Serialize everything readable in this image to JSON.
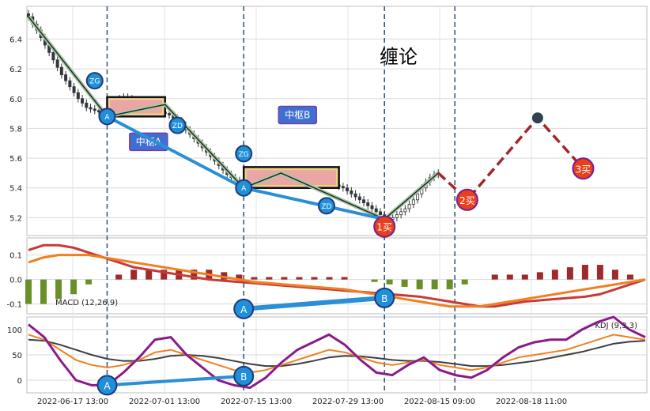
{
  "chart_data": {
    "type": "line",
    "title": "缠论",
    "x_tick_labels": [
      "2022-06-17 13:00",
      "2022-07-01 13:00",
      "2022-07-15 13:00",
      "2022-07-29 13:00",
      "2022-08-15 09:00",
      "2022-08-18 11:00"
    ],
    "n_bars": 150,
    "price_panel": {
      "ylim": [
        5.08,
        6.62
      ],
      "ticks": [
        5.2,
        5.4,
        5.6,
        5.8,
        6.0,
        6.2,
        6.4
      ],
      "candles": [
        [
          6.56,
          6.58,
          6.44,
          6.48
        ],
        [
          6.48,
          6.52,
          6.38,
          6.42
        ],
        [
          6.42,
          6.46,
          6.3,
          6.35
        ],
        [
          6.35,
          6.38,
          6.22,
          6.27
        ],
        [
          6.27,
          6.3,
          6.16,
          6.2
        ],
        [
          6.2,
          6.24,
          6.12,
          6.16
        ],
        [
          6.16,
          6.19,
          6.06,
          6.1
        ],
        [
          6.1,
          6.14,
          6.02,
          6.06
        ],
        [
          6.06,
          6.09,
          5.97,
          6.01
        ],
        [
          6.01,
          6.04,
          5.93,
          5.97
        ],
        [
          5.97,
          6.0,
          5.92,
          5.96
        ],
        [
          5.96,
          5.99,
          5.93,
          5.97
        ],
        [
          5.97,
          6.02,
          5.95,
          6.0
        ],
        [
          6.0,
          6.04,
          5.98,
          6.02
        ],
        [
          6.02,
          6.05,
          5.99,
          6.01
        ],
        [
          6.01,
          6.03,
          5.96,
          5.98
        ],
        [
          5.98,
          6.0,
          5.93,
          5.95
        ],
        [
          5.95,
          5.97,
          5.9,
          5.92
        ],
        [
          5.92,
          5.95,
          5.88,
          5.9
        ],
        [
          5.9,
          5.93,
          5.87,
          5.91
        ]
      ],
      "close": [
        6.55,
        6.5,
        6.46,
        6.41,
        6.36,
        6.31,
        6.26,
        6.21,
        6.16,
        6.12,
        6.08,
        6.04,
        6.0,
        5.97,
        5.94,
        5.93,
        5.92,
        5.91,
        5.9,
        5.92,
        5.95,
        5.98,
        6.0,
        6.01,
        6.0,
        5.99,
        5.97,
        5.96,
        5.95,
        5.94,
        5.93,
        5.92,
        5.91,
        5.9,
        5.89,
        5.87,
        5.85,
        5.82,
        5.79,
        5.76,
        5.73,
        5.7,
        5.67,
        5.64,
        5.61,
        5.58,
        5.55,
        5.52,
        5.49,
        5.47,
        5.45,
        5.44,
        5.43,
        5.42,
        5.43,
        5.44,
        5.45,
        5.46,
        5.47,
        5.48,
        5.49,
        5.5,
        5.49,
        5.48,
        5.47,
        5.46,
        5.45,
        5.44,
        5.43,
        5.43,
        5.44,
        5.45,
        5.44,
        5.43,
        5.42,
        5.41,
        5.4,
        5.38,
        5.36,
        5.34,
        5.32,
        5.3,
        5.28,
        5.26,
        5.24,
        5.22,
        5.2,
        5.19,
        5.2,
        5.22,
        5.24,
        5.26,
        5.29,
        5.32,
        5.36,
        5.4,
        5.44,
        5.47,
        5.49,
        5.5
      ],
      "bi_lines": [
        {
          "points": [
            [
              0,
              6.55
            ],
            [
              19,
              5.88
            ],
            [
              33,
              5.96
            ],
            [
              52,
              5.4
            ],
            [
              61,
              5.5
            ],
            [
              86,
              5.19
            ],
            [
              99,
              5.5
            ]
          ],
          "color": "#1f2b1f"
        },
        {
          "points": [
            [
              19,
              5.88
            ],
            [
              52,
              5.4
            ],
            [
              86,
              5.19
            ]
          ],
          "color": "#2a8fd6"
        }
      ],
      "hubs": [
        {
          "name": "中枢A",
          "x0": 19,
          "x1": 33,
          "y0": 5.88,
          "y1": 6.01,
          "label_x": 29,
          "label_y": 5.71
        },
        {
          "name": "中枢B",
          "x0": 52,
          "x1": 75,
          "y0": 5.4,
          "y1": 5.54,
          "label_x": 65,
          "label_y": 5.89
        }
      ],
      "markers": [
        {
          "label": "ZG",
          "x": 16,
          "y": 6.12
        },
        {
          "label": "A",
          "x": 19,
          "y": 5.88
        },
        {
          "label": "ZD",
          "x": 36,
          "y": 5.82
        },
        {
          "label": "ZG",
          "x": 52,
          "y": 5.63
        },
        {
          "label": "A",
          "x": 52,
          "y": 5.4
        },
        {
          "label": "ZD",
          "x": 72,
          "y": 5.28
        },
        {
          "label": "1买",
          "x": 86,
          "y": 5.14
        }
      ],
      "forecast": [
        [
          99,
          5.5
        ],
        [
          106,
          5.32
        ],
        [
          123,
          5.87
        ],
        [
          134,
          5.53
        ]
      ],
      "forecast_markers": [
        {
          "label": "2买",
          "x": 106,
          "y": 5.32
        },
        {
          "label": "3买",
          "x": 134,
          "y": 5.53
        }
      ],
      "peak_dot": {
        "x": 123,
        "y": 5.87
      }
    },
    "macd_panel": {
      "name": "MACD (12,26,9)",
      "ylim": [
        -0.14,
        0.17
      ],
      "ticks": [
        0.1,
        0.0,
        -0.1
      ],
      "diff": [
        0.07,
        0.09,
        0.1,
        0.1,
        0.1,
        0.09,
        0.08,
        0.07,
        0.06,
        0.05,
        0.04,
        0.03,
        0.02,
        0.01,
        0.0,
        -0.01,
        -0.015,
        -0.02,
        -0.025,
        -0.03,
        -0.035,
        -0.04,
        -0.05,
        -0.06,
        -0.07,
        -0.08,
        -0.09,
        -0.1,
        -0.11,
        -0.11,
        -0.11,
        -0.1,
        -0.09,
        -0.08,
        -0.07,
        -0.06,
        -0.05,
        -0.04,
        -0.03,
        -0.02,
        -0.01,
        0.0
      ],
      "dea": [
        0.12,
        0.14,
        0.14,
        0.13,
        0.11,
        0.09,
        0.07,
        0.05,
        0.04,
        0.03,
        0.02,
        0.01,
        0.0,
        -0.005,
        -0.01,
        -0.015,
        -0.02,
        -0.025,
        -0.03,
        -0.035,
        -0.04,
        -0.045,
        -0.05,
        -0.055,
        -0.06,
        -0.065,
        -0.07,
        -0.08,
        -0.09,
        -0.1,
        -0.11,
        -0.11,
        -0.1,
        -0.09,
        -0.085,
        -0.08,
        -0.075,
        -0.07,
        -0.06,
        -0.04,
        -0.02,
        0.0
      ],
      "markers": [
        {
          "label": "A",
          "x": 52,
          "y": -0.12
        },
        {
          "label": "B",
          "x": 86,
          "y": -0.075
        }
      ]
    },
    "kdj_panel": {
      "name": "KDJ (9,3,3)",
      "ylim": [
        -25,
        125
      ],
      "ticks": [
        100,
        50,
        0
      ],
      "k": [
        90,
        80,
        60,
        40,
        30,
        25,
        30,
        40,
        55,
        60,
        50,
        40,
        30,
        20,
        15,
        20,
        30,
        40,
        50,
        60,
        55,
        45,
        35,
        30,
        35,
        40,
        30,
        25,
        20,
        25,
        35,
        45,
        50,
        55,
        60,
        70,
        80,
        90,
        85,
        80
      ],
      "d": [
        80,
        78,
        70,
        60,
        50,
        42,
        38,
        38,
        42,
        48,
        50,
        48,
        44,
        38,
        32,
        28,
        28,
        32,
        38,
        45,
        48,
        47,
        44,
        40,
        38,
        38,
        36,
        32,
        28,
        28,
        30,
        34,
        38,
        44,
        50,
        56,
        64,
        72,
        76,
        78
      ],
      "j": [
        110,
        85,
        40,
        0,
        -10,
        -10,
        15,
        45,
        80,
        85,
        50,
        25,
        0,
        -10,
        -15,
        5,
        35,
        60,
        75,
        90,
        70,
        40,
        15,
        10,
        30,
        45,
        20,
        10,
        5,
        20,
        45,
        65,
        75,
        80,
        80,
        100,
        115,
        125,
        100,
        85
      ],
      "markers": [
        {
          "label": "A",
          "x": 19,
          "y": -10
        },
        {
          "label": "B",
          "x": 52,
          "y": 8
        }
      ]
    }
  }
}
